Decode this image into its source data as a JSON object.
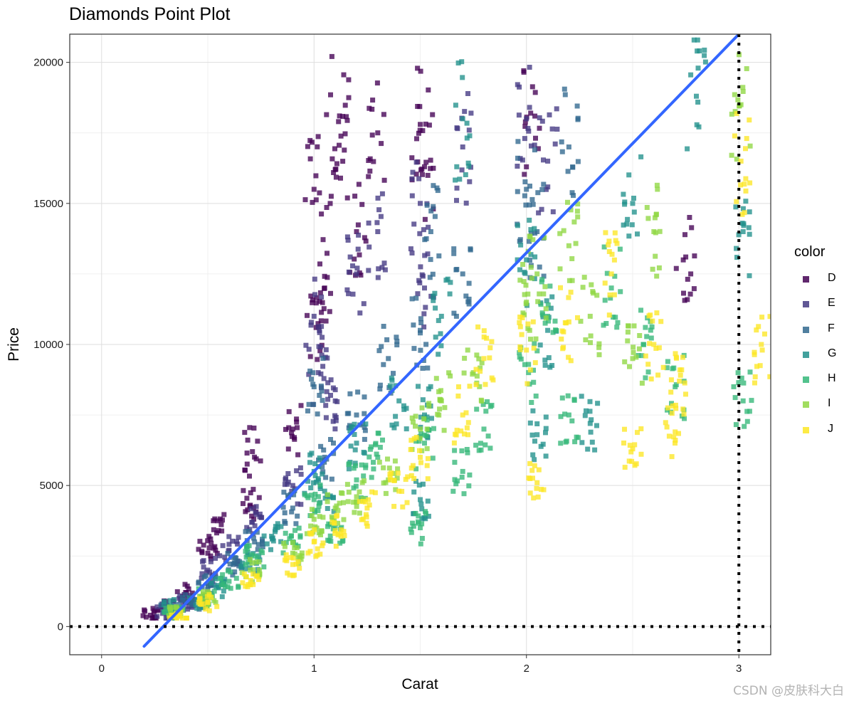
{
  "chart_data": {
    "type": "scatter",
    "title": "Diamonds Point Plot",
    "xlabel": "Carat",
    "ylabel": "Price",
    "xlim": [
      -0.15,
      3.15
    ],
    "ylim": [
      -1000,
      21000
    ],
    "x_ticks": [
      0,
      1,
      2,
      3
    ],
    "x_tick_labels": [
      "0",
      "1",
      "2",
      "3"
    ],
    "y_ticks": [
      0,
      5000,
      10000,
      15000,
      20000
    ],
    "y_tick_labels": [
      "0",
      "5000",
      "10000",
      "15000",
      "20000"
    ],
    "grid": true,
    "legend": {
      "title": "color",
      "position": "right",
      "entries": [
        "D",
        "E",
        "F",
        "G",
        "H",
        "I",
        "J"
      ]
    },
    "series_colors": {
      "D": "#440154",
      "E": "#443983",
      "F": "#31688e",
      "G": "#21918c",
      "H": "#35b779",
      "I": "#90d743",
      "J": "#fde725"
    },
    "trend_line": {
      "type": "linear",
      "color": "#3366ff",
      "x": [
        0.2,
        3.0
      ],
      "y": [
        -700,
        21000
      ]
    },
    "reference_lines": [
      {
        "orientation": "horizontal",
        "value": 0,
        "style": "dotted",
        "color": "#000000"
      },
      {
        "orientation": "vertical",
        "value": 3,
        "style": "dotted",
        "color": "#000000"
      }
    ],
    "approx_point_clusters": [
      {
        "name": "D",
        "points": [
          [
            0.23,
            400
          ],
          [
            0.3,
            700
          ],
          [
            0.4,
            1200
          ],
          [
            0.5,
            2600
          ],
          [
            0.55,
            3400
          ],
          [
            0.7,
            4300
          ],
          [
            0.71,
            6200
          ],
          [
            0.9,
            7000
          ],
          [
            1.0,
            15500
          ],
          [
            1.01,
            10600
          ],
          [
            1.05,
            12000
          ],
          [
            1.1,
            16200
          ],
          [
            1.12,
            18100
          ],
          [
            1.2,
            14000
          ],
          [
            1.3,
            17500
          ],
          [
            1.5,
            17800
          ],
          [
            1.52,
            16300
          ],
          [
            2.02,
            18200
          ],
          [
            2.75,
            13100
          ]
        ]
      },
      {
        "name": "E",
        "points": [
          [
            0.3,
            550
          ],
          [
            0.4,
            900
          ],
          [
            0.5,
            2000
          ],
          [
            0.6,
            2700
          ],
          [
            0.71,
            3700
          ],
          [
            0.9,
            5000
          ],
          [
            1.0,
            11000
          ],
          [
            1.02,
            9000
          ],
          [
            1.1,
            8000
          ],
          [
            1.2,
            12500
          ],
          [
            1.3,
            14000
          ],
          [
            1.5,
            15000
          ],
          [
            1.52,
            12000
          ],
          [
            1.7,
            17000
          ],
          [
            2.0,
            18000
          ],
          [
            2.1,
            16500
          ]
        ]
      },
      {
        "name": "F",
        "points": [
          [
            0.32,
            620
          ],
          [
            0.42,
            850
          ],
          [
            0.5,
            1500
          ],
          [
            0.62,
            2200
          ],
          [
            0.72,
            3000
          ],
          [
            0.9,
            4200
          ],
          [
            1.0,
            8500
          ],
          [
            1.05,
            6000
          ],
          [
            1.2,
            7500
          ],
          [
            1.35,
            9500
          ],
          [
            1.5,
            10500
          ],
          [
            1.55,
            14000
          ],
          [
            1.7,
            12500
          ],
          [
            2.0,
            15500
          ],
          [
            2.05,
            14000
          ],
          [
            2.2,
            17000
          ]
        ]
      },
      {
        "name": "G",
        "points": [
          [
            0.33,
            700
          ],
          [
            0.45,
            950
          ],
          [
            0.55,
            1400
          ],
          [
            0.7,
            2300
          ],
          [
            0.8,
            3200
          ],
          [
            1.0,
            5500
          ],
          [
            1.05,
            4800
          ],
          [
            1.2,
            6500
          ],
          [
            1.4,
            8000
          ],
          [
            1.5,
            4500
          ],
          [
            1.52,
            7500
          ],
          [
            1.6,
            11000
          ],
          [
            1.7,
            18000
          ],
          [
            2.0,
            13000
          ],
          [
            2.05,
            6800
          ],
          [
            2.1,
            10500
          ],
          [
            2.3,
            7200
          ],
          [
            2.5,
            15000
          ],
          [
            2.8,
            18800
          ],
          [
            3.02,
            14000
          ]
        ]
      },
      {
        "name": "H",
        "points": [
          [
            0.34,
            500
          ],
          [
            0.5,
            1100
          ],
          [
            0.6,
            1600
          ],
          [
            0.72,
            2500
          ],
          [
            0.9,
            3000
          ],
          [
            1.0,
            4500
          ],
          [
            1.1,
            3500
          ],
          [
            1.2,
            5200
          ],
          [
            1.3,
            6000
          ],
          [
            1.5,
            3500
          ],
          [
            1.52,
            6500
          ],
          [
            1.7,
            5500
          ],
          [
            1.8,
            7000
          ],
          [
            2.01,
            9000
          ],
          [
            2.1,
            11000
          ],
          [
            2.2,
            7500
          ],
          [
            2.4,
            12000
          ],
          [
            2.55,
            10000
          ],
          [
            2.7,
            8500
          ],
          [
            3.02,
            8000
          ]
        ]
      },
      {
        "name": "I",
        "points": [
          [
            0.35,
            450
          ],
          [
            0.5,
            950
          ],
          [
            0.7,
            2000
          ],
          [
            0.9,
            2600
          ],
          [
            1.0,
            3800
          ],
          [
            1.1,
            4200
          ],
          [
            1.2,
            4600
          ],
          [
            1.35,
            5200
          ],
          [
            1.5,
            7000
          ],
          [
            1.6,
            8000
          ],
          [
            1.75,
            9000
          ],
          [
            2.0,
            11500
          ],
          [
            2.05,
            12500
          ],
          [
            2.2,
            13500
          ],
          [
            2.3,
            11000
          ],
          [
            2.5,
            9500
          ],
          [
            2.6,
            14000
          ],
          [
            3.01,
            18500
          ]
        ]
      },
      {
        "name": "J",
        "points": [
          [
            0.36,
            400
          ],
          [
            0.5,
            850
          ],
          [
            0.7,
            1500
          ],
          [
            0.9,
            2200
          ],
          [
            1.0,
            3000
          ],
          [
            1.1,
            3400
          ],
          [
            1.25,
            4200
          ],
          [
            1.4,
            4800
          ],
          [
            1.5,
            6000
          ],
          [
            1.7,
            7500
          ],
          [
            1.8,
            9500
          ],
          [
            2.0,
            9800
          ],
          [
            2.05,
            5100
          ],
          [
            2.2,
            10800
          ],
          [
            2.4,
            12500
          ],
          [
            2.5,
            6300
          ],
          [
            2.6,
            10000
          ],
          [
            2.7,
            6900
          ],
          [
            2.72,
            8700
          ],
          [
            3.01,
            16500
          ],
          [
            3.11,
            9800
          ]
        ]
      }
    ]
  },
  "watermark": "CSDN @皮肤科大白"
}
